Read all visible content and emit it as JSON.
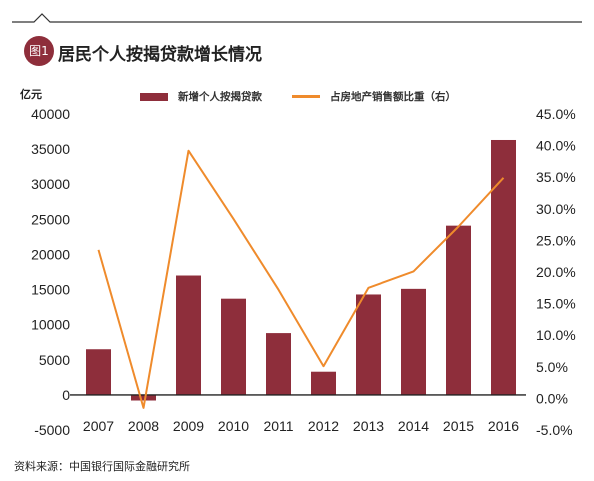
{
  "badge": "图1",
  "title": "居民个人按揭贷款增长情况",
  "unit_label": "亿元",
  "source": "资料来源：中国银行国际金融研究所",
  "legend": [
    {
      "label": "新增个人按揭贷款",
      "color": "#8e2e3b",
      "kind": "bar"
    },
    {
      "label": "占房地产销售额比重（右）",
      "color": "#ef8b2c",
      "kind": "line"
    }
  ],
  "chart_data": {
    "type": "bar",
    "categories": [
      "2007",
      "2008",
      "2009",
      "2010",
      "2011",
      "2012",
      "2013",
      "2014",
      "2015",
      "2016"
    ],
    "series": [
      {
        "name": "新增个人按揭贷款",
        "type": "bar",
        "axis": "left",
        "values": [
          6500,
          -800,
          17000,
          13700,
          8800,
          3300,
          14300,
          15100,
          24100,
          36300
        ]
      },
      {
        "name": "占房地产销售额比重（右）",
        "type": "line",
        "axis": "right",
        "values": [
          23.5,
          -1.5,
          39.2,
          28.4,
          17.2,
          5.1,
          17.5,
          20.1,
          27.2,
          34.9
        ]
      }
    ],
    "left_axis": {
      "ylim": [
        -5000,
        40000
      ],
      "ticks": [
        "-5000",
        "0",
        "5000",
        "10000",
        "15000",
        "20000",
        "25000",
        "30000",
        "35000",
        "40000"
      ]
    },
    "right_axis": {
      "ylim": [
        -5.0,
        45.0
      ],
      "ticks": [
        "-5.0%",
        "0.0%",
        "5.0%",
        "10.0%",
        "15.0%",
        "20.0%",
        "25.0%",
        "30.0%",
        "35.0%",
        "40.0%",
        "45.0%"
      ]
    },
    "colors": {
      "bar": "#8e2e3b",
      "line": "#ef8b2c",
      "baseline": "#222222"
    },
    "grid": false,
    "legend_position": "top"
  }
}
